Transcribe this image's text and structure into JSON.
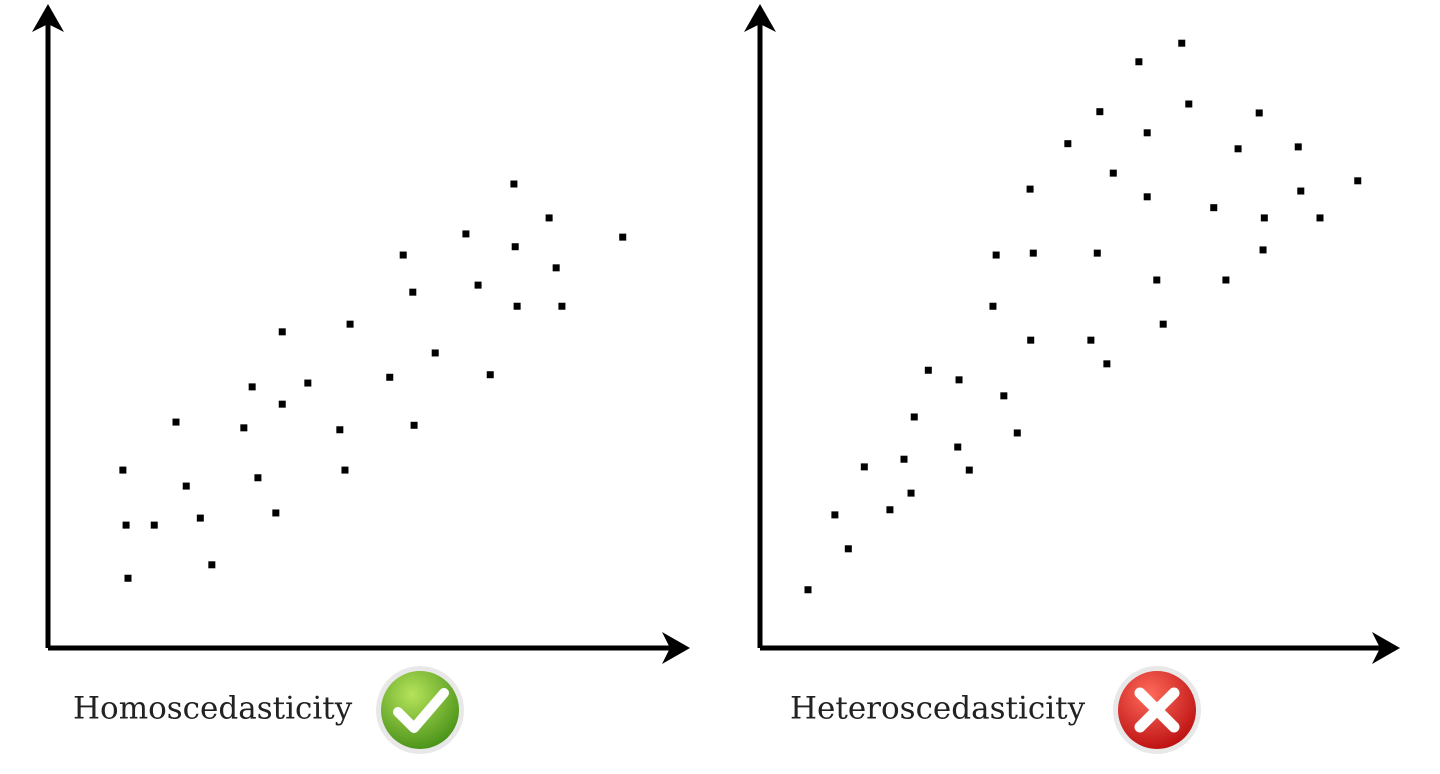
{
  "chart_data": [
    {
      "type": "scatter",
      "title": "Homoscedasticity",
      "color": "#000000",
      "xlim": [
        0,
        100
      ],
      "ylim": [
        0,
        100
      ],
      "x": [
        11.7,
        12.2,
        12.5,
        16.6,
        20.0,
        21.6,
        23.8,
        25.6,
        30.6,
        31.9,
        32.8,
        35.6,
        36.6,
        36.6,
        40.6,
        45.6,
        46.4,
        47.2,
        53.4,
        55.5,
        57.0,
        57.2,
        60.5,
        65.3,
        67.2,
        69.1,
        72.8,
        73.0,
        73.3,
        78.3,
        79.4,
        80.3,
        89.8
      ],
      "values": [
        27.8,
        19.2,
        10.9,
        19.2,
        35.3,
        25.3,
        20.3,
        13.0,
        34.4,
        40.8,
        26.6,
        21.1,
        49.4,
        38.1,
        41.4,
        34.1,
        27.8,
        50.6,
        42.3,
        61.4,
        55.6,
        34.8,
        46.1,
        64.7,
        56.7,
        42.7,
        72.5,
        62.7,
        53.4,
        67.2,
        59.4,
        53.4,
        64.2
      ]
    },
    {
      "type": "scatter",
      "title": "Heteroscedasticity",
      "color": "#000000",
      "xlim": [
        0,
        100
      ],
      "ylim": [
        0,
        100
      ],
      "x": [
        7.5,
        11.7,
        13.8,
        16.3,
        20.3,
        22.5,
        23.6,
        24.1,
        26.3,
        30.9,
        31.1,
        32.7,
        36.4,
        36.9,
        38.1,
        40.2,
        42.2,
        42.3,
        42.7,
        48.1,
        51.7,
        52.7,
        53.1,
        54.2,
        55.2,
        59.2,
        60.5,
        60.5,
        62.0,
        63.0,
        65.9,
        67.0,
        70.9,
        72.8,
        74.7,
        78.0,
        78.6,
        78.8,
        84.1,
        84.5,
        87.5,
        93.4
      ],
      "values": [
        9.1,
        20.8,
        15.5,
        28.3,
        21.6,
        29.5,
        24.2,
        36.1,
        43.4,
        31.4,
        41.9,
        27.8,
        53.4,
        61.4,
        39.4,
        33.6,
        71.7,
        48.1,
        61.7,
        78.8,
        48.1,
        61.7,
        83.8,
        44.4,
        74.2,
        91.6,
        80.5,
        70.5,
        57.5,
        50.6,
        94.5,
        85.0,
        68.8,
        57.5,
        78.0,
        83.6,
        62.2,
        67.2,
        78.3,
        71.4,
        67.2,
        73.0
      ]
    }
  ]
}
